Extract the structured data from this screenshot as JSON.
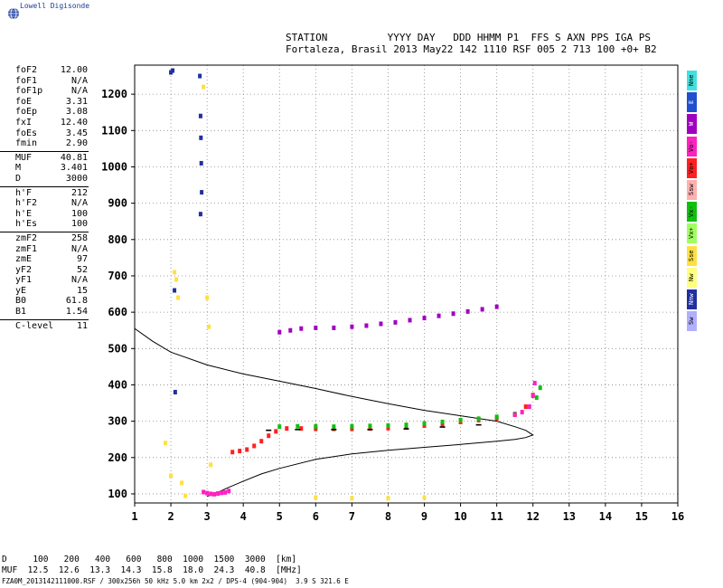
{
  "brand": "Lowell Digisonde",
  "header": {
    "line1": "STATION          YYYY DAY   DDD HHMM P1  FFS S AXN PPS IGA PS",
    "line2": "Fortaleza, Brasil 2013 May22 142 1110 RSF 005 2 713 100 +0+ B2"
  },
  "params": {
    "group1": [
      {
        "label": "foF2",
        "value": "12.00"
      },
      {
        "label": "foF1",
        "value": "N/A"
      },
      {
        "label": "foF1p",
        "value": "N/A"
      },
      {
        "label": "foE",
        "value": "3.31"
      },
      {
        "label": "foEp",
        "value": "3.08"
      },
      {
        "label": "fxI",
        "value": "12.40"
      },
      {
        "label": "foEs",
        "value": "3.45"
      },
      {
        "label": "fmin",
        "value": "2.90"
      }
    ],
    "group2": [
      {
        "label": "MUF",
        "value": "40.81"
      },
      {
        "label": "M",
        "value": "3.401"
      },
      {
        "label": "D",
        "value": "3000"
      }
    ],
    "group3": [
      {
        "label": "h'F",
        "value": "212"
      },
      {
        "label": "h'F2",
        "value": "N/A"
      },
      {
        "label": "h'E",
        "value": "100"
      },
      {
        "label": "h'Es",
        "value": "100"
      }
    ],
    "group4": [
      {
        "label": "zmF2",
        "value": "258"
      },
      {
        "label": "zmF1",
        "value": "N/A"
      },
      {
        "label": "zmE",
        "value": "97"
      },
      {
        "label": "yF2",
        "value": "52"
      },
      {
        "label": "yF1",
        "value": "N/A"
      },
      {
        "label": "yE",
        "value": "15"
      },
      {
        "label": "B0",
        "value": "61.8"
      },
      {
        "label": "B1",
        "value": "1.54"
      }
    ],
    "group5": [
      {
        "label": "C-level",
        "value": "11"
      }
    ]
  },
  "legend": [
    {
      "label": "Nne",
      "color": "#40e0e0"
    },
    {
      "label": "E",
      "color": "#2050d0"
    },
    {
      "label": "W",
      "color": "#a000c0"
    },
    {
      "label": "Vo-",
      "color": "#ff20c0"
    },
    {
      "label": "Vo+",
      "color": "#ff2020"
    },
    {
      "label": "Ssw",
      "color": "#ffb0b0"
    },
    {
      "label": "Vx-",
      "color": "#10c010"
    },
    {
      "label": "Vx+",
      "color": "#a0ff60"
    },
    {
      "label": "Sse",
      "color": "#ffe040"
    },
    {
      "label": "Nw",
      "color": "#ffff80"
    },
    {
      "label": "Nnw",
      "color": "#2030a0"
    },
    {
      "label": "Sw",
      "color": "#b0b0ff"
    }
  ],
  "distance_table": {
    "d_row": "D     100   200   400   600   800  1000  1500  3000  [km]",
    "muf_row": "MUF  12.5  12.6  13.3  14.3  15.8  18.0  24.3  40.8  [MHz]"
  },
  "footer": "FZA0M_2013142111000.RSF / 300x256h 50 kHz 5.0 km 2x2 / DPS-4 (904-904)  3.9 S 321.6 E",
  "chart_data": {
    "type": "scatter",
    "xlim": [
      1,
      16
    ],
    "ylim": [
      75,
      1280
    ],
    "xticks": [
      1,
      2,
      3,
      4,
      5,
      6,
      7,
      8,
      9,
      10,
      11,
      12,
      13,
      14,
      15,
      16
    ],
    "yticks": [
      100,
      200,
      300,
      400,
      500,
      600,
      700,
      800,
      900,
      1000,
      1100,
      1200
    ],
    "grid": true,
    "profile": {
      "x": [
        3.0,
        3.31,
        3.6,
        4.0,
        4.5,
        5.0,
        6.0,
        7.0,
        8.0,
        9.0,
        10.0,
        11.0,
        11.5,
        11.8,
        12.0,
        11.8,
        11.5,
        11.0,
        10.0,
        9.0,
        8.0,
        7.0,
        6.0,
        5.0,
        4.0,
        3.0,
        2.0,
        1.5,
        1.0
      ],
      "y": [
        93,
        105,
        118,
        135,
        155,
        170,
        195,
        210,
        220,
        228,
        236,
        245,
        250,
        255,
        262,
        275,
        285,
        300,
        315,
        330,
        348,
        368,
        390,
        410,
        430,
        455,
        490,
        520,
        555
      ]
    },
    "series": [
      {
        "name": "Vo+",
        "color": "#ff2020",
        "x": [
          3.7,
          3.9,
          4.1,
          4.3,
          4.5,
          4.7,
          4.9,
          5.2,
          5.6,
          6.0,
          6.5,
          7.0,
          7.5,
          8.0,
          8.5,
          9.0,
          9.5,
          10.0,
          10.5,
          11.0,
          11.5,
          11.8,
          12.0
        ],
        "y": [
          215,
          218,
          222,
          232,
          245,
          260,
          272,
          280,
          280,
          279,
          279,
          279,
          280,
          281,
          283,
          288,
          292,
          298,
          303,
          308,
          318,
          340,
          372
        ]
      },
      {
        "name": "Vx-",
        "color": "#10c010",
        "x": [
          5.0,
          5.5,
          6.0,
          6.5,
          7.0,
          7.5,
          8.0,
          8.5,
          9.0,
          9.5,
          10.0,
          10.5,
          11.0,
          11.5,
          11.9,
          12.1,
          12.2
        ],
        "y": [
          285,
          286,
          286,
          285,
          286,
          287,
          288,
          290,
          294,
          298,
          303,
          307,
          312,
          320,
          340,
          365,
          392
        ]
      },
      {
        "name": "Vo-",
        "color": "#ff20c0",
        "x": [
          2.9,
          3.0,
          3.1,
          3.2,
          3.3,
          3.4,
          3.5,
          3.6,
          11.5,
          11.7,
          11.9,
          12.0,
          12.05
        ],
        "y": [
          105,
          102,
          100,
          99,
          101,
          103,
          104,
          108,
          318,
          325,
          340,
          370,
          405
        ]
      },
      {
        "name": "Nnw",
        "color": "#2030a0",
        "x": [
          2.0,
          2.05,
          2.8,
          2.82,
          2.83,
          2.84,
          2.85,
          2.1,
          2.12,
          2.82
        ],
        "y": [
          1260,
          1265,
          1250,
          1140,
          1080,
          1010,
          930,
          660,
          380,
          870
        ]
      },
      {
        "name": "Sse",
        "color": "#ffe040",
        "x": [
          2.1,
          2.15,
          2.2,
          2.9,
          3.0,
          3.05,
          3.1,
          1.85,
          2.0,
          2.3,
          2.4,
          6.0,
          7.0,
          8.0,
          9.0
        ],
        "y": [
          710,
          690,
          640,
          1220,
          640,
          560,
          180,
          240,
          150,
          130,
          95,
          90,
          88,
          88,
          90
        ]
      },
      {
        "name": "F2 echo",
        "color": "#a000c0",
        "x": [
          5.0,
          5.3,
          5.6,
          6.0,
          6.5,
          7.0,
          7.4,
          7.8,
          8.2,
          8.6,
          9.0,
          9.4,
          9.8,
          10.2,
          10.6,
          11.0
        ],
        "y": [
          545,
          550,
          555,
          557,
          557,
          560,
          563,
          568,
          572,
          578,
          584,
          590,
          596,
          602,
          608,
          615
        ]
      }
    ],
    "markers": [
      {
        "name": "trace-line",
        "x": [
          4.7,
          5.5,
          6.5,
          7.5,
          8.5,
          9.5,
          10.5
        ],
        "y": [
          275,
          277,
          277,
          277,
          279,
          284,
          290
        ]
      }
    ]
  }
}
